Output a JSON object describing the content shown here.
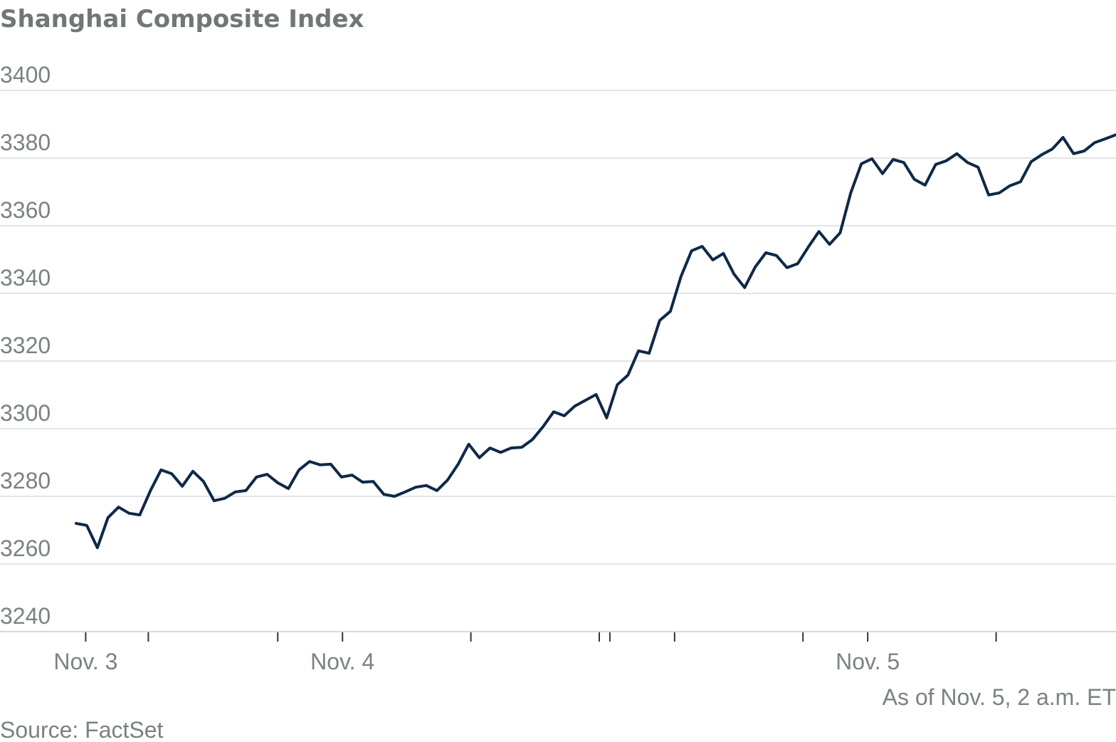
{
  "chart_data": {
    "type": "line",
    "title": "Shanghai Composite Index",
    "xlabel": "",
    "ylabel": "",
    "ylim": [
      3240,
      3400
    ],
    "y_ticks": [
      3400,
      3380,
      3360,
      3340,
      3320,
      3300,
      3280,
      3260,
      3240
    ],
    "grid": true,
    "x_ticks": [
      {
        "label": "Nov. 3",
        "x": 0.9,
        "major": true
      },
      {
        "label": "",
        "x": 6.8,
        "major": false
      },
      {
        "label": "",
        "x": 19,
        "major": false
      },
      {
        "label": "Nov. 4",
        "x": 25.1,
        "major": true
      },
      {
        "label": "",
        "x": 37.2,
        "major": false
      },
      {
        "label": "",
        "x": 49.3,
        "major": false
      },
      {
        "label": "",
        "x": 50.3,
        "major": false
      },
      {
        "label": "",
        "x": 56.4,
        "major": false
      },
      {
        "label": "",
        "x": 68.5,
        "major": false
      },
      {
        "label": "Nov. 5",
        "x": 74.6,
        "major": true
      },
      {
        "label": "",
        "x": 86.7,
        "major": false
      },
      {
        "label": "",
        "x": 98.8,
        "major": false
      }
    ],
    "line_color": "#0f2848",
    "values": [
      3272,
      3271.4,
      3264.8,
      3273.7,
      3276.8,
      3275,
      3274.5,
      3281.7,
      3287.8,
      3286.7,
      3283,
      3287.4,
      3284.4,
      3278.7,
      3279.4,
      3281.3,
      3281.7,
      3285.7,
      3286.5,
      3284,
      3282.3,
      3287.8,
      3290.3,
      3289.3,
      3289.5,
      3285.7,
      3286.3,
      3284.2,
      3284.4,
      3280.6,
      3280,
      3281.3,
      3282.7,
      3283.2,
      3281.7,
      3284.8,
      3289.5,
      3295.4,
      3291.4,
      3294.3,
      3293,
      3294.3,
      3294.5,
      3296.8,
      3300.6,
      3305,
      3303.8,
      3306.7,
      3308.4,
      3310.1,
      3303.2,
      3313,
      3315.8,
      3323,
      3322.3,
      3332,
      3334.7,
      3345,
      3352.6,
      3353.9,
      3349.9,
      3351.8,
      3345.7,
      3341.7,
      3347.8,
      3352,
      3351.2,
      3347.6,
      3348.8,
      3353.7,
      3358.3,
      3354.5,
      3357.9,
      3369.7,
      3378.3,
      3379.8,
      3375.4,
      3379.6,
      3378.7,
      3373.7,
      3372,
      3378.1,
      3379.2,
      3381.3,
      3378.7,
      3377.3,
      3369.1,
      3369.7,
      3371.8,
      3373,
      3378.9,
      3381,
      3382.7,
      3386.1,
      3381.3,
      3382.1,
      3384.6,
      3385.7,
      3386.9
    ]
  },
  "notes": {
    "as_of": "As of Nov. 5, 2 a.m. ET",
    "source": "Source: FactSet"
  }
}
